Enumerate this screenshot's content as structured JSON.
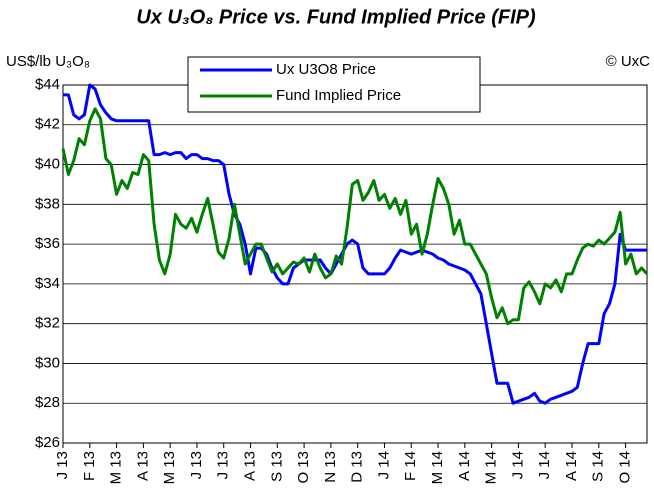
{
  "chart_data": {
    "type": "line",
    "title": "Ux U₃O₈ Price vs. Fund Implied Price (FIP)",
    "y_axis_label": "US$/lb U₃O₈",
    "annotation": "© UxC",
    "categories": [
      "J 13",
      null,
      null,
      null,
      null,
      "F 13",
      null,
      null,
      null,
      null,
      "M 13",
      null,
      null,
      null,
      null,
      "A 13",
      null,
      null,
      null,
      null,
      "M 13",
      null,
      null,
      null,
      null,
      "J 13",
      null,
      null,
      null,
      null,
      "J 13",
      null,
      null,
      null,
      null,
      "A 13",
      null,
      null,
      null,
      null,
      "S 13",
      null,
      null,
      null,
      null,
      "O 13",
      null,
      null,
      null,
      null,
      "N 13",
      null,
      null,
      null,
      null,
      "D 13",
      null,
      null,
      null,
      null,
      "J 14",
      null,
      null,
      null,
      null,
      "F 14",
      null,
      null,
      null,
      null,
      "M 14",
      null,
      null,
      null,
      null,
      "A 14",
      null,
      null,
      null,
      null,
      "M 14",
      null,
      null,
      null,
      null,
      "J 14",
      null,
      null,
      null,
      null,
      "J 14",
      null,
      null,
      null,
      null,
      "A 14",
      null,
      null,
      null,
      null,
      "S 14",
      null,
      null,
      null,
      null,
      "O 14",
      null,
      null,
      null,
      null
    ],
    "series": [
      {
        "name": "Ux U3O8 Price",
        "color": "#0000ff",
        "values": [
          43.5,
          43.5,
          42.5,
          42.3,
          42.5,
          44,
          43.8,
          43,
          42.6,
          42.3,
          42.2,
          42.2,
          42.2,
          42.2,
          42.2,
          42.2,
          42.2,
          40.5,
          40.5,
          40.6,
          40.5,
          40.6,
          40.6,
          40.3,
          40.5,
          40.5,
          40.3,
          40.3,
          40.2,
          40.2,
          40,
          38.5,
          37.5,
          37,
          36,
          34.5,
          35.8,
          35.8,
          35.5,
          34.8,
          34.3,
          34,
          34,
          34.8,
          35,
          35.2,
          35.2,
          35.2,
          35.2,
          34.8,
          34.5,
          35,
          35.5,
          36,
          36.2,
          36,
          34.8,
          34.5,
          34.5,
          34.5,
          34.5,
          34.8,
          35.3,
          35.7,
          35.6,
          35.5,
          35.6,
          35.7,
          35.6,
          35.5,
          35.3,
          35.2,
          35,
          34.9,
          34.8,
          34.7,
          34.5,
          34,
          33.5,
          32,
          30.5,
          29,
          29,
          29,
          28,
          28.1,
          28.2,
          28.3,
          28.5,
          28.1,
          28,
          28.2,
          28.3,
          28.4,
          28.5,
          28.6,
          28.8,
          30,
          31,
          31,
          31,
          32.5,
          33,
          34,
          36.5,
          35.7,
          35.7,
          35.7,
          35.7,
          35.7
        ]
      },
      {
        "name": "Fund Implied Price",
        "color": "#008000",
        "values": [
          40.8,
          39.5,
          40.2,
          41.3,
          41,
          42.2,
          42.8,
          42.3,
          40.3,
          40,
          38.5,
          39.2,
          38.8,
          39.6,
          39.5,
          40.5,
          40.2,
          37,
          35.2,
          34.5,
          35.5,
          37.5,
          37,
          36.8,
          37.3,
          36.6,
          37.5,
          38.3,
          37,
          35.6,
          35.3,
          36.3,
          38,
          36.5,
          35,
          35.5,
          36,
          36,
          35.3,
          34.6,
          35,
          34.5,
          34.8,
          35.1,
          35,
          35.3,
          34.6,
          35.5,
          34.8,
          34.3,
          34.5,
          35.4,
          35,
          36.8,
          39,
          39.2,
          38.2,
          38.6,
          39.2,
          38.2,
          38.5,
          37.8,
          38.3,
          37.5,
          38.2,
          36.5,
          37,
          35.5,
          36.5,
          38,
          39.3,
          38.8,
          38,
          36.5,
          37.2,
          36,
          36,
          35.5,
          35,
          34.5,
          33.3,
          32.3,
          32.8,
          32,
          32.2,
          32.2,
          33.8,
          34.1,
          33.6,
          33,
          34,
          33.8,
          34.2,
          33.6,
          34.5,
          34.5,
          35.2,
          35.8,
          36,
          35.9,
          36.2,
          36,
          36.3,
          36.6,
          37.6,
          35,
          35.5,
          34.5,
          34.8,
          34.5
        ]
      }
    ],
    "ylim": [
      26,
      44
    ],
    "yticks": [
      {
        "value": 26,
        "label": "$26"
      },
      {
        "value": 28,
        "label": "$28"
      },
      {
        "value": 30,
        "label": "$30"
      },
      {
        "value": 32,
        "label": "$32"
      },
      {
        "value": 34,
        "label": "$34"
      },
      {
        "value": 36,
        "label": "$36"
      },
      {
        "value": 38,
        "label": "$38"
      },
      {
        "value": 40,
        "label": "$40"
      },
      {
        "value": 42,
        "label": "$42"
      },
      {
        "value": 44,
        "label": "$44"
      }
    ],
    "grid": true,
    "legend": "top"
  }
}
